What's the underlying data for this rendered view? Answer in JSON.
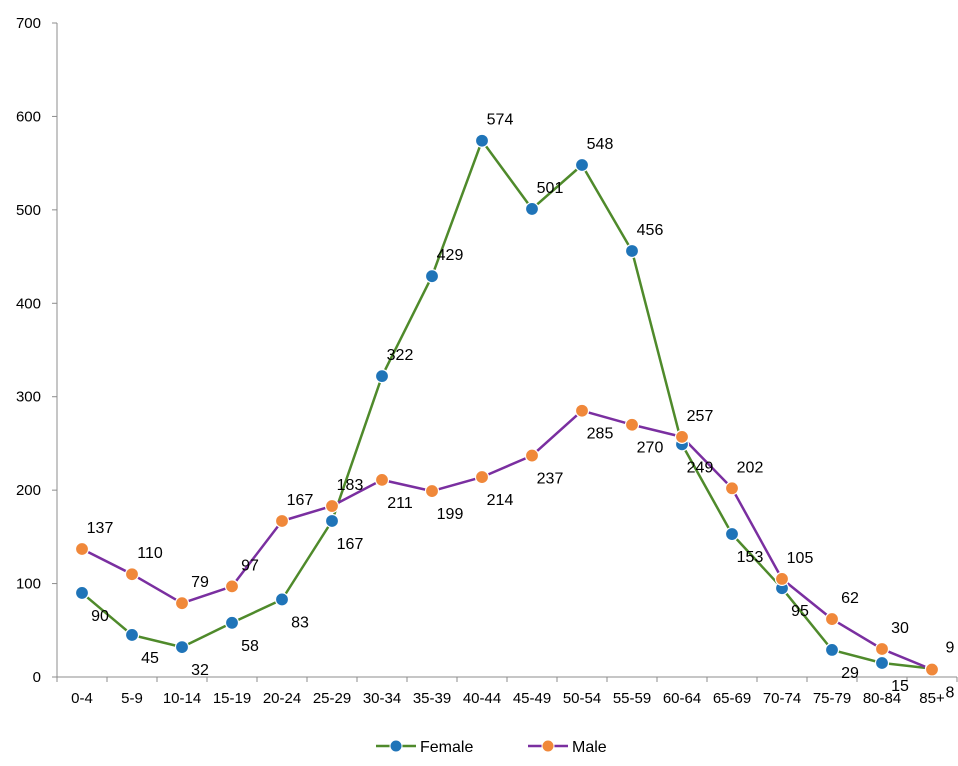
{
  "chart_data": {
    "type": "line",
    "title": "",
    "xlabel": "",
    "ylabel": "",
    "ylim": [
      0,
      700
    ],
    "y_ticks": [
      "0",
      "100",
      "200",
      "300",
      "400",
      "500",
      "600",
      "700"
    ],
    "categories": [
      "0-4",
      "5-9",
      "10-14",
      "15-19",
      "20-24",
      "25-29",
      "30-34",
      "35-39",
      "40-44",
      "45-49",
      "50-54",
      "55-59",
      "60-64",
      "65-69",
      "70-74",
      "75-79",
      "80-84",
      "85+"
    ],
    "legend_position": "bottom",
    "grid": false,
    "series": [
      {
        "name": "Female",
        "line_color": "#4f8a2b",
        "marker_color": "#1f74b8",
        "values": [
          90,
          45,
          32,
          58,
          83,
          167,
          322,
          429,
          574,
          501,
          548,
          456,
          249,
          153,
          95,
          29,
          15,
          9
        ],
        "labels": [
          "90",
          "45",
          "32",
          "58",
          "83",
          "167",
          "322",
          "429",
          "574",
          "501",
          "548",
          "456",
          "249",
          "153",
          "95",
          "29",
          "15",
          "9"
        ]
      },
      {
        "name": "Male",
        "line_color": "#7a2fa0",
        "marker_color": "#f0883a",
        "values": [
          137,
          110,
          79,
          97,
          167,
          183,
          211,
          199,
          214,
          237,
          285,
          270,
          257,
          202,
          105,
          62,
          30,
          8
        ],
        "labels": [
          "137",
          "110",
          "79",
          "97",
          "167",
          "183",
          "211",
          "199",
          "214",
          "237",
          "285",
          "270",
          "257",
          "202",
          "105",
          "62",
          "30",
          "8"
        ]
      }
    ]
  }
}
